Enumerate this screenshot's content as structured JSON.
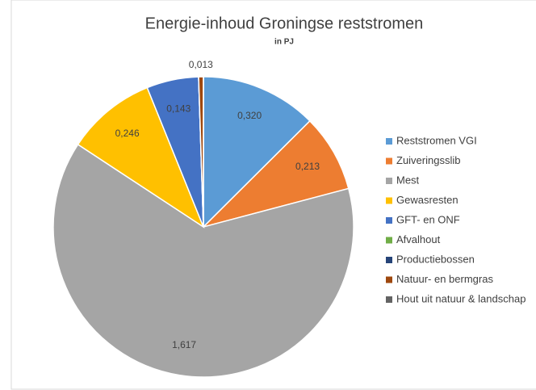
{
  "chart_data": {
    "type": "pie",
    "title": "Energie-inhoud Groningse reststromen",
    "subtitle": "in PJ",
    "categories": [
      "Reststromen VGI",
      "Zuiveringsslib",
      "Mest",
      "Gewasresten",
      "GFT- en ONF",
      "Afvalhout",
      "Productiebossen",
      "Natuur- en bermgras",
      "Hout uit natuur & landschap"
    ],
    "values": [
      0.32,
      0.213,
      1.617,
      0.246,
      0.143,
      0,
      0,
      0.013,
      0
    ],
    "value_labels": [
      "0,320",
      "0,213",
      "1,617",
      "0,246",
      "0,143",
      null,
      null,
      "0,013",
      null
    ],
    "colors": [
      "#5b9bd5",
      "#ed7d31",
      "#a5a5a5",
      "#ffc000",
      "#4472c4",
      "#70ad47",
      "#264478",
      "#9e480e",
      "#636363"
    ],
    "legend": "right"
  }
}
